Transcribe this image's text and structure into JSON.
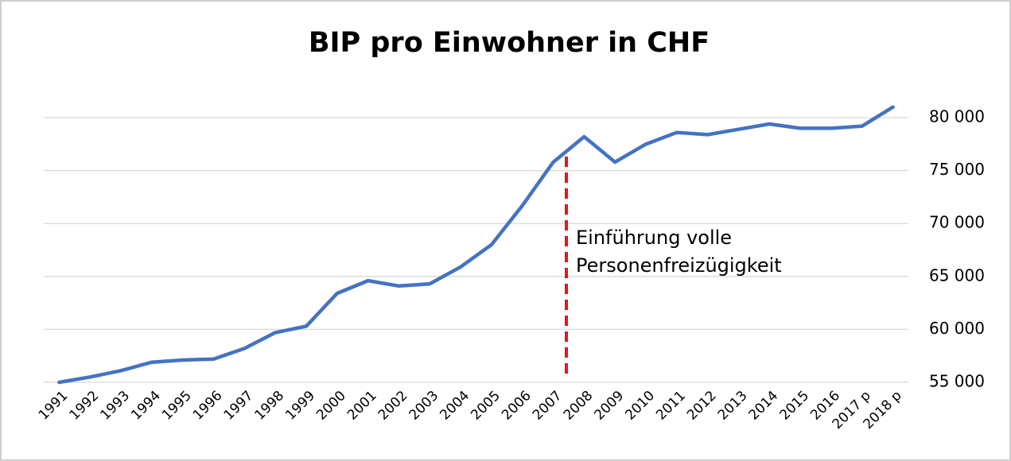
{
  "chart_data": {
    "type": "line",
    "title": "BIP pro Einwohner in CHF",
    "categories": [
      "1991",
      "1992",
      "1993",
      "1994",
      "1995",
      "1996",
      "1997",
      "1998",
      "1999",
      "2000",
      "2001",
      "2002",
      "2003",
      "2004",
      "2005",
      "2006",
      "2007",
      "2008",
      "2009",
      "2010",
      "2011",
      "2012",
      "2013",
      "2014",
      "2015",
      "2016",
      "2017 p",
      "2018 p"
    ],
    "series": [
      {
        "color": "#4472c4",
        "values": [
          55000,
          55500,
          56100,
          56900,
          57100,
          57200,
          58200,
          59700,
          60300,
          63400,
          64600,
          64100,
          64300,
          65900,
          68000,
          71700,
          75800,
          78200,
          75800,
          77500,
          78600,
          78400,
          78900,
          79400,
          79000,
          79000,
          79200,
          81000
        ]
      }
    ],
    "ylim": [
      55000,
      82000
    ],
    "yticks": [
      {
        "value": 55000,
        "label": "55 000"
      },
      {
        "value": 60000,
        "label": "60 000"
      },
      {
        "value": 65000,
        "label": "65 000"
      },
      {
        "value": 70000,
        "label": "70 000"
      },
      {
        "value": 75000,
        "label": "75 000"
      },
      {
        "value": 80000,
        "label": "80 000"
      }
    ],
    "grid": true,
    "annotation": [
      "Einführung volle",
      "Personenfreizügigkeit"
    ]
  }
}
